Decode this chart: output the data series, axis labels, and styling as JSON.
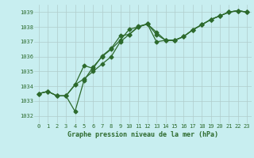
{
  "title": "Graphe pression niveau de la mer (hPa)",
  "background_color": "#c8eef0",
  "grid_color": "#b0cccc",
  "line_color": "#2d6a2d",
  "marker_color": "#2d6a2d",
  "xlim": [
    -0.5,
    23.5
  ],
  "ylim": [
    1031.5,
    1039.5
  ],
  "yticks": [
    1032,
    1033,
    1034,
    1035,
    1036,
    1037,
    1038,
    1039
  ],
  "xticks": [
    0,
    1,
    2,
    3,
    4,
    5,
    6,
    7,
    8,
    9,
    10,
    11,
    12,
    13,
    14,
    15,
    16,
    17,
    18,
    19,
    20,
    21,
    22,
    23
  ],
  "line1_x": [
    0,
    1,
    2,
    3,
    4,
    5,
    6,
    7,
    8,
    9,
    10,
    11,
    12,
    13,
    14,
    15,
    16,
    17,
    18,
    19,
    20,
    21,
    22,
    23
  ],
  "line1_y": [
    1033.5,
    1033.65,
    1033.35,
    1033.35,
    1034.1,
    1034.5,
    1035.0,
    1035.5,
    1036.0,
    1037.0,
    1037.5,
    1038.0,
    1038.2,
    1037.65,
    1037.1,
    1037.1,
    1037.35,
    1037.8,
    1038.15,
    1038.5,
    1038.75,
    1039.0,
    1039.1,
    1039.0
  ],
  "line2_x": [
    0,
    1,
    2,
    3,
    4,
    5,
    6,
    7,
    8,
    9,
    10,
    11,
    12,
    13,
    14,
    15,
    16,
    17,
    18,
    19,
    20,
    21,
    22,
    23
  ],
  "line2_y": [
    1033.5,
    1033.65,
    1033.35,
    1033.35,
    1032.3,
    1034.4,
    1035.3,
    1036.0,
    1036.5,
    1037.1,
    1037.85,
    1038.0,
    1038.2,
    1037.5,
    1037.1,
    1037.1,
    1037.35,
    1037.8,
    1038.15,
    1038.5,
    1038.75,
    1039.0,
    1039.1,
    1039.0
  ],
  "line3_x": [
    0,
    1,
    2,
    3,
    4,
    5,
    6,
    7,
    8,
    9,
    10,
    11,
    12,
    13,
    14,
    15,
    16,
    17,
    18,
    19,
    20,
    21,
    22,
    23
  ],
  "line3_y": [
    1033.5,
    1033.65,
    1033.35,
    1033.35,
    1034.1,
    1035.4,
    1035.2,
    1036.05,
    1036.55,
    1037.4,
    1037.5,
    1038.05,
    1038.2,
    1037.0,
    1037.1,
    1037.1,
    1037.35,
    1037.8,
    1038.15,
    1038.5,
    1038.75,
    1039.0,
    1039.1,
    1039.0
  ]
}
